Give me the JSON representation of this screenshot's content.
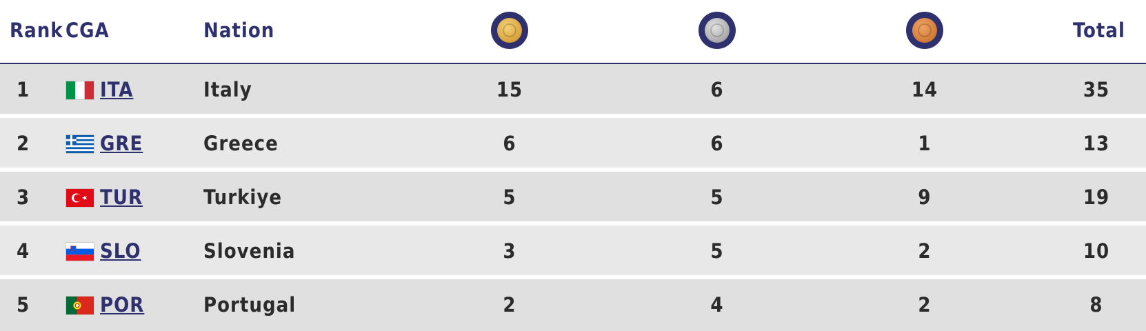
{
  "header": {
    "rank": "Rank",
    "cga": "CGA",
    "nation": "Nation",
    "total": "Total",
    "medals": [
      {
        "type": "gold",
        "icon": "gold-medal-icon",
        "color": "#d9a23a"
      },
      {
        "type": "silver",
        "icon": "silver-medal-icon",
        "color": "#a9a9ab"
      },
      {
        "type": "bronze",
        "icon": "bronze-medal-icon",
        "color": "#d17a35"
      }
    ]
  },
  "colors": {
    "accent": "#2e316e",
    "row_odd": "#e0e0e0",
    "row_even": "#e8e8e8",
    "text": "#2b2b2b"
  },
  "rows": [
    {
      "rank": "1",
      "cga": "ITA",
      "flag": "italy-flag-icon",
      "nation": "Italy",
      "gold": "15",
      "silver": "6",
      "bronze": "14",
      "total": "35"
    },
    {
      "rank": "2",
      "cga": "GRE",
      "flag": "greece-flag-icon",
      "nation": "Greece",
      "gold": "6",
      "silver": "6",
      "bronze": "1",
      "total": "13"
    },
    {
      "rank": "3",
      "cga": "TUR",
      "flag": "turkey-flag-icon",
      "nation": "Turkiye",
      "gold": "5",
      "silver": "5",
      "bronze": "9",
      "total": "19"
    },
    {
      "rank": "4",
      "cga": "SLO",
      "flag": "slovenia-flag-icon",
      "nation": "Slovenia",
      "gold": "3",
      "silver": "5",
      "bronze": "2",
      "total": "10"
    },
    {
      "rank": "5",
      "cga": "POR",
      "flag": "portugal-flag-icon",
      "nation": "Portugal",
      "gold": "2",
      "silver": "4",
      "bronze": "2",
      "total": "8"
    }
  ]
}
